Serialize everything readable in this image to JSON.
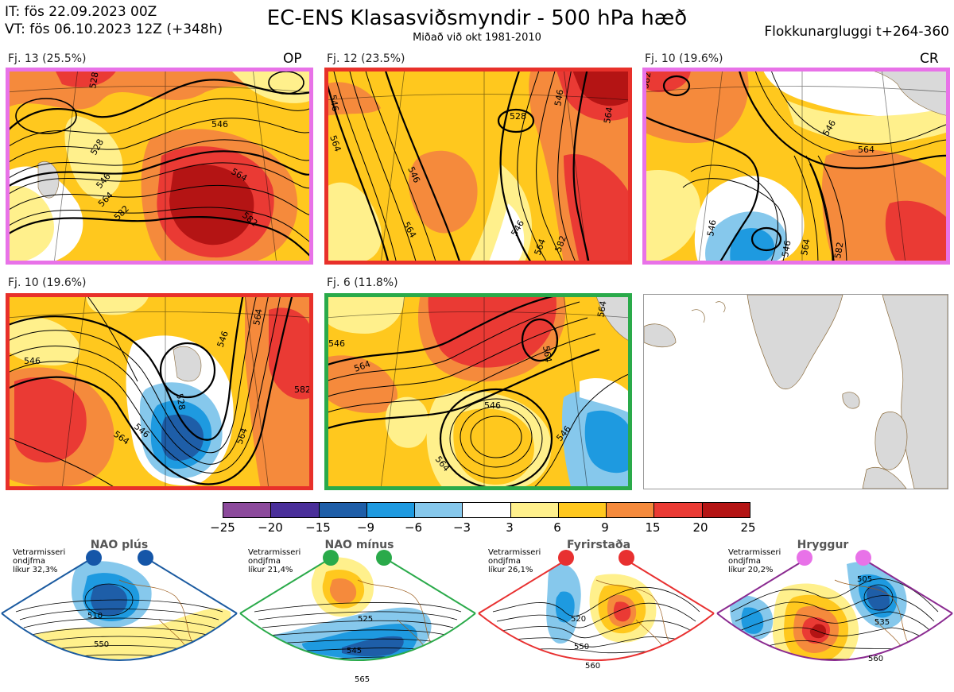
{
  "header": {
    "it_line": "IT: fös 22.09.2023 00Z",
    "vt_line": "VT: fös 06.10.2023 12Z  (+348h)",
    "title": "EC-ENS Klasasviðsmyndir - 500 hPa hæð",
    "subtitle": "Miðað við okt 1981-2010",
    "window": "Flokkunargluggi t+264-360"
  },
  "panels": [
    {
      "label": "Fj. 13 (25.5%)",
      "tag": "OP",
      "border": "#e872e8"
    },
    {
      "label": "Fj. 12 (23.5%)",
      "tag": "",
      "border": "#e8302a"
    },
    {
      "label": "Fj. 10 (19.6%)",
      "tag": "CR",
      "border": "#e872e8"
    },
    {
      "label": "Fj. 10 (19.6%)",
      "tag": "",
      "border": "#e8302a"
    },
    {
      "label": "Fj. 6 (11.8%)",
      "tag": "",
      "border": "#2aaa4a"
    }
  ],
  "contour_labels": {
    "p1": [
      "528",
      "546",
      "564",
      "582",
      "546",
      "564",
      "582",
      "528"
    ],
    "p2": [
      "528",
      "546",
      "564",
      "546",
      "564",
      "546",
      "564",
      "582",
      "546",
      "564"
    ],
    "p3": [
      "546",
      "564",
      "582",
      "546",
      "564",
      "582",
      "546"
    ],
    "p4": [
      "546",
      "564",
      "528",
      "546",
      "564",
      "564",
      "582",
      "546"
    ],
    "p5": [
      "546",
      "564",
      "546",
      "564",
      "546",
      "564",
      "564"
    ]
  },
  "colorbar": {
    "ticks": [
      "−25",
      "−20",
      "−15",
      "−9",
      "−6",
      "−3",
      "3",
      "6",
      "9",
      "15",
      "20",
      "25"
    ],
    "colors": [
      "#8c4a9c",
      "#4a2f9a",
      "#1e5ea8",
      "#1e9ae0",
      "#86c8ec",
      "#ffffff",
      "#fff08c",
      "#ffc81e",
      "#f58a3c",
      "#ea3a34",
      "#b41414"
    ]
  },
  "regimes": [
    {
      "name": "NAO plús",
      "line1": "Vetrarmisseri",
      "line2": "ondjfma",
      "line3": "líkur 32,3%",
      "dot": "#1556a8",
      "frame": "#1a5aa0",
      "labels": [
        "510",
        "550"
      ]
    },
    {
      "name": "NAO mínus",
      "line1": "Vetrarmisseri",
      "line2": "ondjfma",
      "line3": "líkur 21,4%",
      "dot": "#2aaa4a",
      "frame": "#2aaa4a",
      "labels": [
        "525",
        "545",
        "565"
      ]
    },
    {
      "name": "Fyrirstaða",
      "line1": "Vetrarmisseri",
      "line2": "ondjfma",
      "line3": "líkur 26,1%",
      "dot": "#e83030",
      "frame": "#e83030",
      "labels": [
        "520",
        "550",
        "560"
      ]
    },
    {
      "name": "Hryggur",
      "line1": "Vetrarmisseri",
      "line2": "ondjfma",
      "line3": "líkur 20,2%",
      "dot": "#e872e8",
      "frame": "#8a2a90",
      "labels": [
        "505",
        "535",
        "560"
      ]
    }
  ]
}
